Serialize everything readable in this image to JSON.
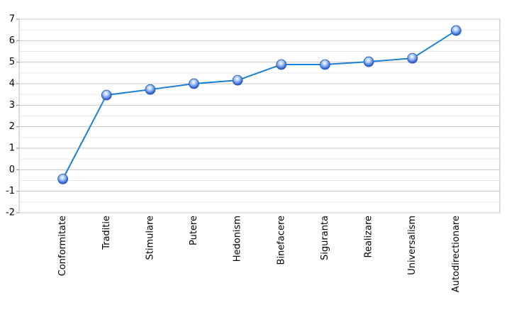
{
  "chart_data": {
    "type": "line",
    "categories": [
      "Conformitate",
      "Traditie",
      "Stimulare",
      "Putere",
      "Hedonism",
      "Binefacere",
      "Siguranta",
      "Realizare",
      "Universalism",
      "Autodirectionare"
    ],
    "values": [
      -0.43,
      3.47,
      3.73,
      4.0,
      4.16,
      4.89,
      4.89,
      5.02,
      5.18,
      6.47
    ],
    "color": "#1a7fd6",
    "ylim": [
      -2,
      7
    ],
    "yticks": [
      -2,
      -1,
      0,
      1,
      2,
      3,
      4,
      5,
      6,
      7
    ],
    "grid": true
  }
}
